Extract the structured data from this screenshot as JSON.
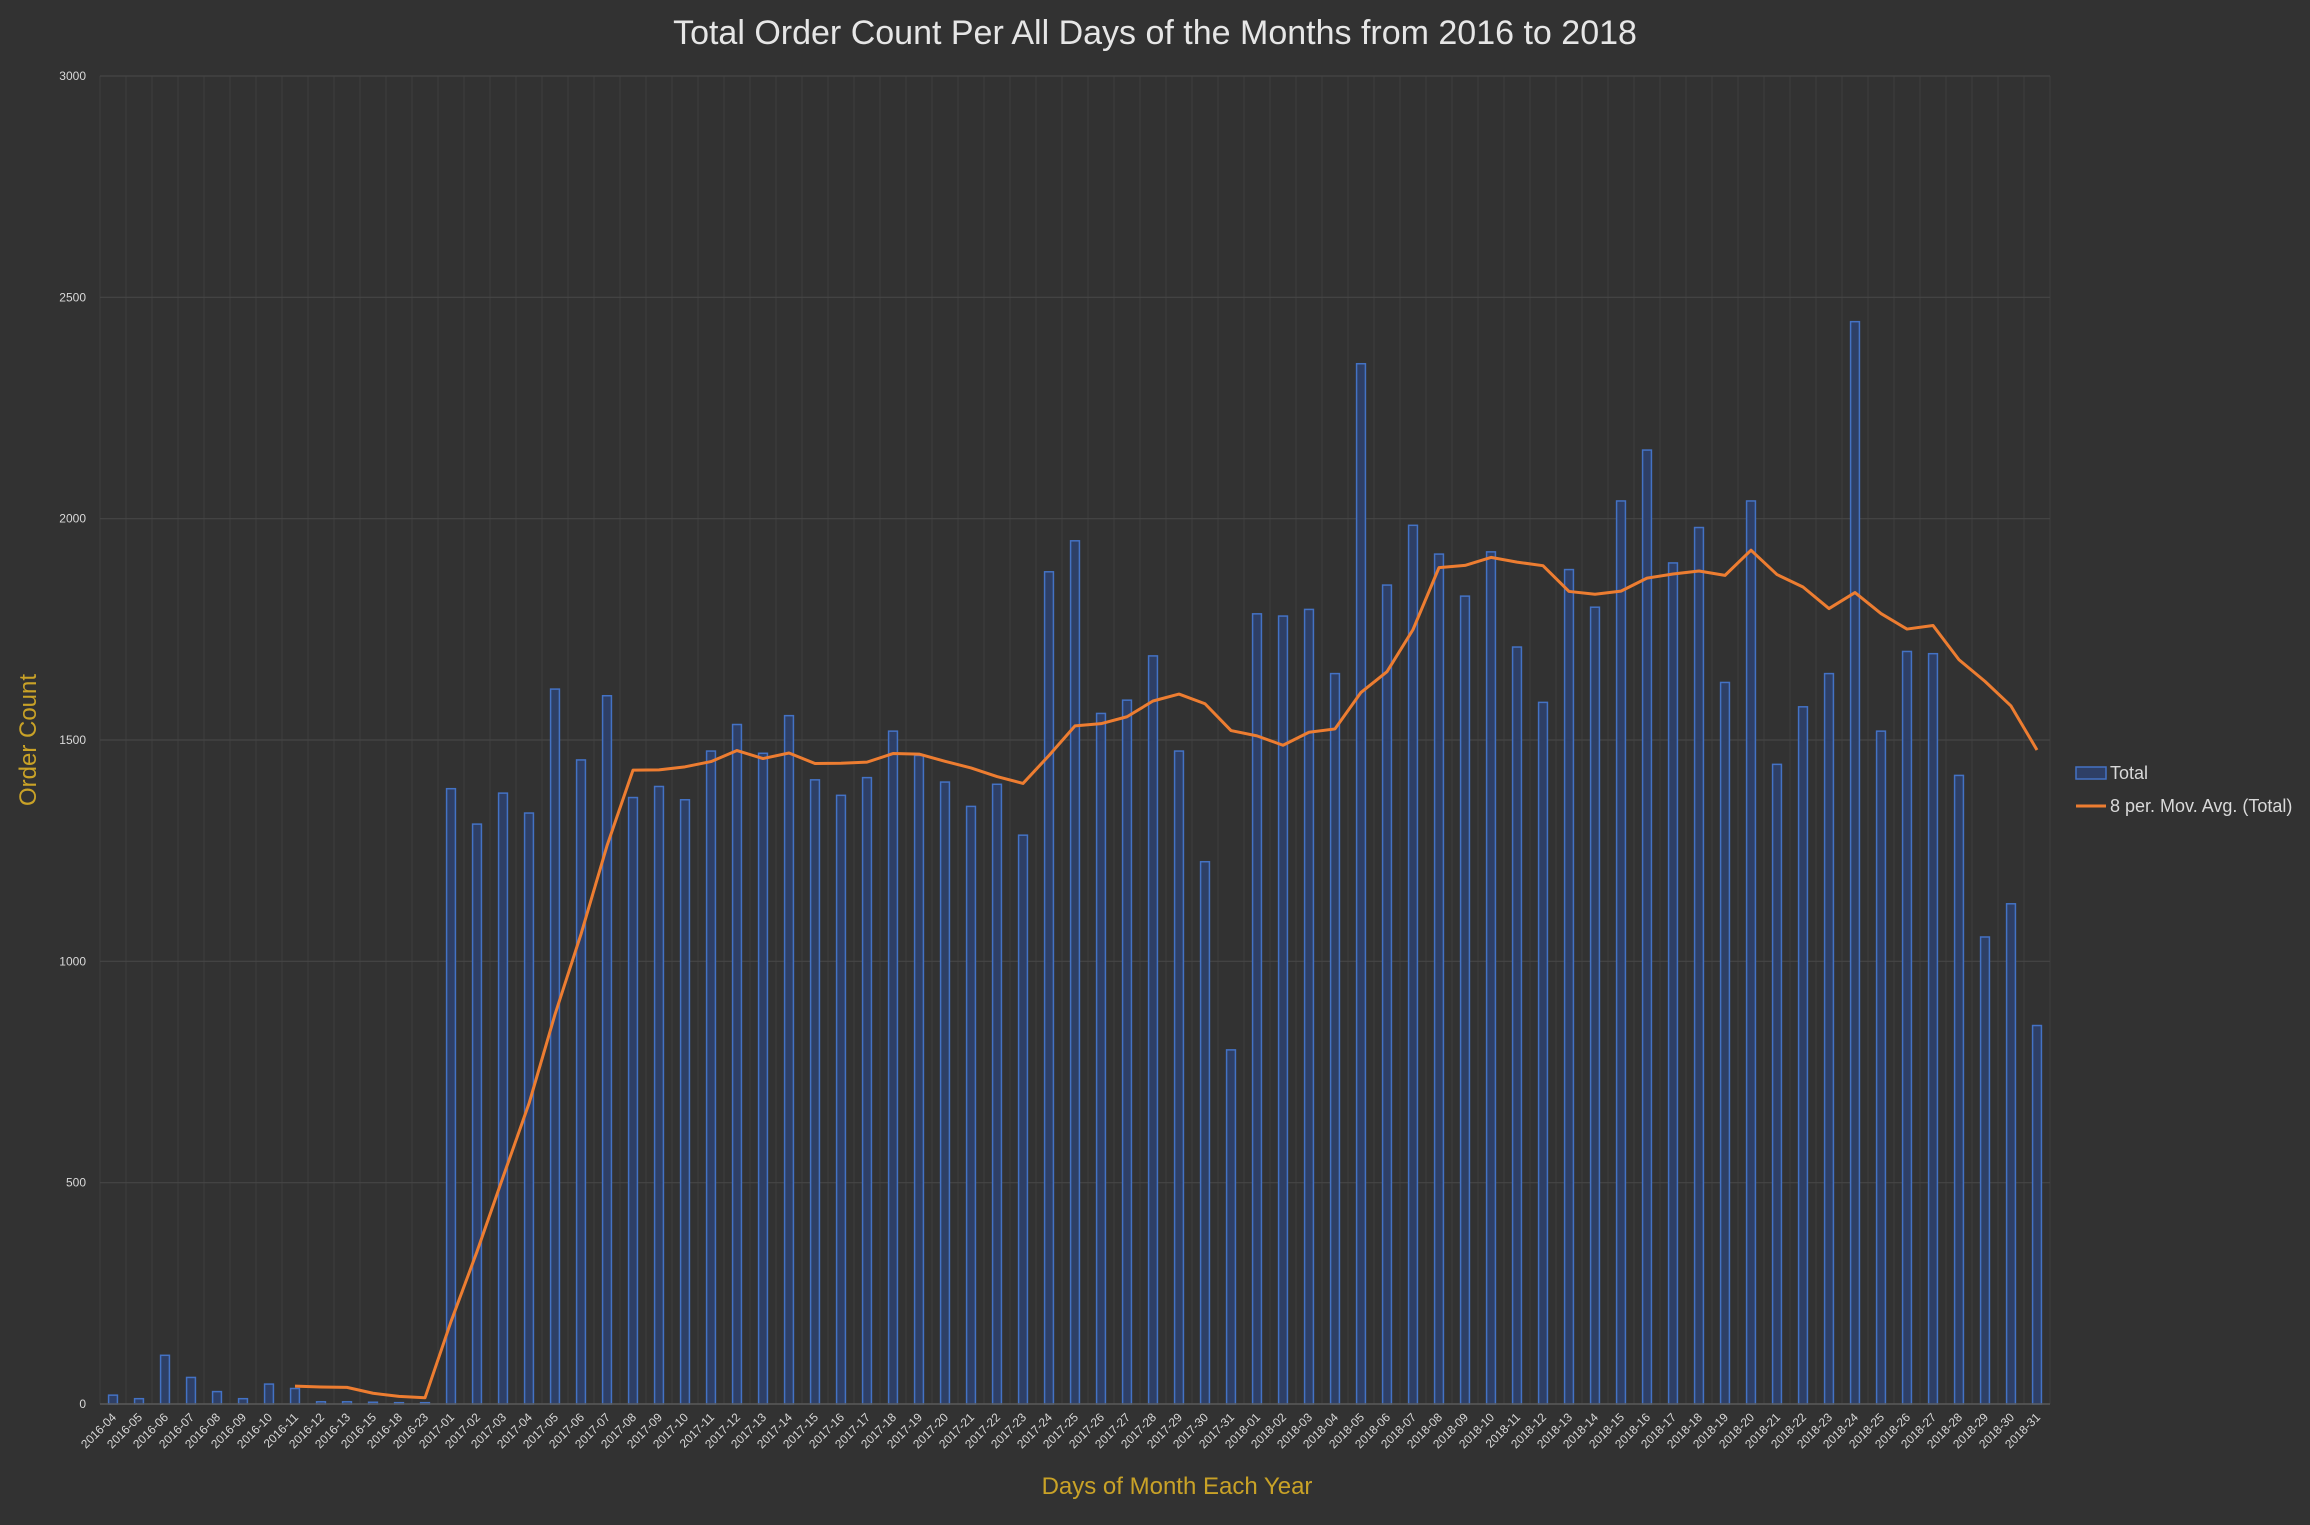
{
  "chart_data": {
    "type": "bar",
    "title": "Total Order Count Per All Days of the Months from 2016 to 2018",
    "xlabel": "Days of Month Each Year",
    "ylabel": "Order Count",
    "ylim": [
      0,
      3000
    ],
    "yticks": [
      0,
      500,
      1000,
      1500,
      2000,
      2500,
      3000
    ],
    "grid": true,
    "legend_position": "right",
    "colors": {
      "background": "#323232",
      "bar_stroke": "#4472C4",
      "bar_fill": "#2E3F66",
      "line": "#ED7D31",
      "title": "#E6E6E6",
      "axis_title": "#C9A227",
      "tick_label": "#D9D9D9",
      "grid": "#464646"
    },
    "categories": [
      "2016-04",
      "2016-05",
      "2016-06",
      "2016-07",
      "2016-08",
      "2016-09",
      "2016-10",
      "2016-11",
      "2016-12",
      "2016-13",
      "2016-15",
      "2016-18",
      "2016-23",
      "2017-01",
      "2017-02",
      "2017-03",
      "2017-04",
      "2017-05",
      "2017-06",
      "2017-07",
      "2017-08",
      "2017-09",
      "2017-10",
      "2017-11",
      "2017-12",
      "2017-13",
      "2017-14",
      "2017-15",
      "2017-16",
      "2017-17",
      "2017-18",
      "2017-19",
      "2017-20",
      "2017-21",
      "2017-22",
      "2017-23",
      "2017-24",
      "2017-25",
      "2017-26",
      "2017-27",
      "2017-28",
      "2017-29",
      "2017-30",
      "2017-31",
      "2018-01",
      "2018-02",
      "2018-03",
      "2018-04",
      "2018-05",
      "2018-06",
      "2018-07",
      "2018-08",
      "2018-09",
      "2018-10",
      "2018-11",
      "2018-12",
      "2018-13",
      "2018-14",
      "2018-15",
      "2018-16",
      "2018-17",
      "2018-18",
      "2018-19",
      "2018-20",
      "2018-21",
      "2018-22",
      "2018-23",
      "2018-24",
      "2018-25",
      "2018-26",
      "2018-27",
      "2018-28",
      "2018-29",
      "2018-30",
      "2018-31"
    ],
    "series": [
      {
        "name": "Total",
        "type": "bar",
        "values": [
          20,
          12,
          110,
          60,
          28,
          12,
          45,
          35,
          5,
          5,
          4,
          3,
          3,
          1390,
          1310,
          1380,
          1335,
          1615,
          1455,
          1600,
          1370,
          1395,
          1365,
          1475,
          1535,
          1470,
          1555,
          1410,
          1375,
          1415,
          1520,
          1465,
          1405,
          1350,
          1400,
          1285,
          1880,
          1950,
          1560,
          1590,
          1690,
          1475,
          1225,
          800,
          1785,
          1780,
          1795,
          1650,
          2350,
          1850,
          1985,
          1920,
          1825,
          1925,
          1710,
          1585,
          1885,
          1800,
          2040,
          2155,
          1900,
          1980,
          1630,
          2040,
          1445,
          1575,
          1650,
          2445,
          1520,
          1700,
          1695,
          1420,
          1055,
          1130,
          855
        ]
      },
      {
        "name": "8 per. Mov. Avg. (Total)",
        "type": "line",
        "period": 8
      }
    ]
  },
  "legend": {
    "items": [
      {
        "label": "Total"
      },
      {
        "label": "8 per. Mov. Avg. (Total)"
      }
    ]
  }
}
